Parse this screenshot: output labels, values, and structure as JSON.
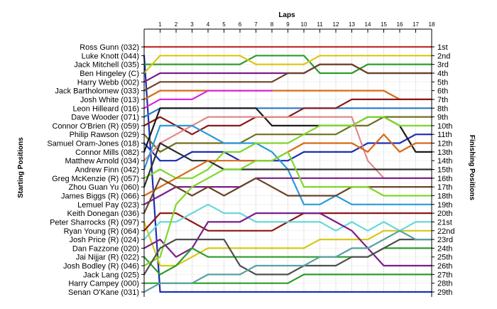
{
  "chart_data": {
    "type": "line",
    "title": "",
    "xlabel": "Laps",
    "ylabel_left": "Starting Positions",
    "ylabel_right": "Finishing Positions",
    "x": [
      0,
      1,
      2,
      3,
      4,
      5,
      6,
      7,
      8,
      9,
      10,
      11,
      12,
      13,
      14,
      15,
      16,
      17,
      18
    ],
    "x_tick_labels": [
      "1",
      "2",
      "3",
      "4",
      "5",
      "6",
      "7",
      "8",
      "9",
      "10",
      "11",
      "12",
      "13",
      "14",
      "15",
      "16",
      "17",
      "18"
    ],
    "ylim": [
      1,
      29
    ],
    "grid": true,
    "drivers": [
      "Ross Gunn (032)",
      "Luke Knott (044)",
      "Jack Mitchell (035)",
      "Ben Hingeley (C)",
      "Harry Webb (002)",
      "Jack Bartholomew (033)",
      "Josh White (013)",
      "Leon Hilleard (016)",
      "Dave Wooder (071)",
      "Connor O'Brien (R) (059)",
      "Philip Rawson (029)",
      "Samuel Oram-Jones (018)",
      "Connor Mills (082)",
      "Matthew Arnold (034)",
      "Andrew Finn (042)",
      "Greg McKenzie (R) (057)",
      "Zhou Guan Yu (060)",
      "James Biggs (R) (066)",
      "Lemuel Pay (023)",
      "Keith Donegan (036)",
      "Peter Sharrocks (R) (097)",
      "Ryan Young (R) (064)",
      "Josh Price (R) (024)",
      "Dan Fazzone (020)",
      "Jai Nijjar (R) (022)",
      "Josh Bodley (R) (046)",
      "Jack Lang (025)",
      "Harry Campey (000)",
      "Senan O'Kane (031)"
    ],
    "finishing_labels": [
      "1st",
      "2nd",
      "3rd",
      "4th",
      "5th",
      "6th",
      "7th",
      "8th",
      "9th",
      "10th",
      "11th",
      "12th",
      "13th",
      "14th",
      "15th",
      "16th",
      "17th",
      "18th",
      "19th",
      "20th",
      "21st",
      "22nd",
      "23rd",
      "24th",
      "25th",
      "26th",
      "27th",
      "28th",
      "29th"
    ],
    "series": [
      {
        "name": "Ross Gunn (032)",
        "color": "#c0302a",
        "values": [
          1,
          1,
          1,
          1,
          1,
          1,
          1,
          1,
          1,
          1,
          1,
          1,
          1,
          1,
          1,
          1,
          1,
          1,
          1
        ]
      },
      {
        "name": "Luke Knott (044)",
        "color": "#1c2fb0",
        "values": [
          2,
          29,
          29,
          29,
          29,
          29,
          29,
          29,
          29,
          29,
          29,
          29,
          29,
          29,
          29,
          29,
          29,
          29,
          29
        ]
      },
      {
        "name": "Jack Mitchell (035)",
        "color": "#2e9c2e",
        "values": [
          3,
          3,
          3,
          3,
          3,
          3,
          3,
          2,
          2,
          2,
          2,
          4,
          4,
          4,
          3,
          3,
          3,
          3,
          3
        ]
      },
      {
        "name": "Ben Hingeley (C)",
        "color": "#d8c818",
        "values": [
          4,
          2,
          2,
          2,
          2,
          2,
          2,
          3,
          3,
          3,
          3,
          2,
          2,
          2,
          2,
          2,
          2,
          2,
          2
        ]
      },
      {
        "name": "Harry Webb (002)",
        "color": "#7a1e8a",
        "values": [
          5,
          4,
          4,
          4,
          4,
          4,
          4,
          4,
          4,
          4,
          4,
          3,
          3,
          3,
          4,
          4,
          4,
          4,
          4
        ]
      },
      {
        "name": "Jack Bartholomew (033)",
        "color": "#6b4428",
        "values": [
          6,
          5,
          5,
          5,
          5,
          5,
          5,
          5,
          5,
          4,
          4,
          3,
          3,
          3,
          4,
          4,
          4,
          4,
          4
        ]
      },
      {
        "name": "Josh White (013)",
        "color": "#d96a18",
        "values": [
          7,
          6,
          6,
          6,
          6,
          6,
          6,
          6,
          6,
          6,
          6,
          6,
          6,
          6,
          6,
          6,
          7,
          7,
          7
        ]
      },
      {
        "name": "Leon Hilleard (016)",
        "color": "#d82ad8",
        "values": [
          8,
          7,
          7,
          7,
          6,
          6,
          6,
          6,
          6,
          null,
          null,
          null,
          null,
          null,
          null,
          null,
          null,
          null,
          null
        ]
      },
      {
        "name": "Dave Wooder (071)",
        "color": "#2a7ac8",
        "values": [
          9,
          8,
          8,
          8,
          8,
          8,
          8,
          8,
          8,
          8,
          8,
          8,
          8,
          8,
          8,
          8,
          8,
          8,
          8
        ]
      },
      {
        "name": "Connor O'Brien (R) (059)",
        "color": "#8a1a1a",
        "values": [
          10,
          9,
          10,
          11,
          10,
          10,
          10,
          9,
          9,
          9,
          8,
          8,
          8,
          7,
          7,
          7,
          7,
          7,
          7
        ]
      },
      {
        "name": "Philip Rawson (029)",
        "color": "#707020",
        "values": [
          11,
          13,
          12,
          12,
          12,
          12,
          12,
          11,
          11,
          11,
          11,
          11,
          11,
          10,
          10,
          9,
          9,
          9,
          9
        ]
      },
      {
        "name": "Samuel Oram-Jones (018)",
        "color": "#1c2fb0",
        "values": [
          12,
          14,
          14,
          13,
          13,
          13,
          14,
          14,
          14,
          14,
          13,
          13,
          13,
          13,
          12,
          12,
          12,
          11,
          11
        ]
      },
      {
        "name": "Connor Mills (082)",
        "color": "#1a1a1a",
        "values": [
          13,
          8,
          8,
          8,
          8,
          8,
          8,
          8,
          10,
          10,
          10,
          10,
          10,
          10,
          9,
          9,
          10,
          13,
          13
        ]
      },
      {
        "name": "Matthew Arnold (034)",
        "color": "#e08a8a",
        "values": [
          14,
          12,
          11,
          10,
          9,
          9,
          9,
          9,
          9,
          9,
          9,
          9,
          9,
          9,
          14,
          16,
          16,
          16,
          16
        ]
      },
      {
        "name": "Andrew Finn (042)",
        "color": "#2a9ad8",
        "values": [
          15,
          10,
          10,
          10,
          11,
          12,
          12,
          12,
          13,
          15,
          19,
          19,
          18,
          19,
          19,
          19,
          19,
          19,
          19
        ]
      },
      {
        "name": "Greg McKenzie (R) (057)",
        "color": "#7fd82a",
        "values": [
          16,
          15,
          16,
          16,
          15,
          13,
          13,
          12,
          12,
          12,
          11,
          10,
          10,
          10,
          9,
          9,
          10,
          10,
          10
        ]
      },
      {
        "name": "Zhou Guan Yu (060)",
        "color": "#303030",
        "values": [
          17,
          12,
          13,
          14,
          14,
          15,
          15,
          15,
          15,
          15,
          15,
          15,
          15,
          15,
          15,
          15,
          15,
          15,
          15
        ]
      },
      {
        "name": "James Biggs (R) (066)",
        "color": "#d96a18",
        "values": [
          18,
          17,
          16,
          15,
          14,
          14,
          14,
          14,
          14,
          13,
          12,
          12,
          12,
          12,
          13,
          11,
          13,
          12,
          12
        ]
      },
      {
        "name": "Lemuel Pay (023)",
        "color": "#7a1e8a",
        "values": [
          19,
          18,
          17,
          17,
          17,
          17,
          17,
          16,
          16,
          16,
          16,
          16,
          16,
          16,
          16,
          16,
          16,
          16,
          16
        ]
      },
      {
        "name": "Keith Donegan (036)",
        "color": "#6b4428",
        "values": [
          20,
          16,
          17,
          18,
          17,
          18,
          17,
          16,
          17,
          18,
          18,
          18,
          18,
          17,
          17,
          17,
          17,
          17,
          17
        ]
      },
      {
        "name": "Peter Sharrocks (R) (097)",
        "color": "#d8c818",
        "values": [
          21,
          26,
          26,
          25,
          24,
          24,
          24,
          24,
          24,
          24,
          24,
          23,
          23,
          23,
          23,
          22,
          22,
          22,
          22
        ]
      },
      {
        "name": "Ryan Young (R) (064)",
        "color": "#8a1a1a",
        "values": [
          22,
          20,
          20,
          21,
          22,
          22,
          22,
          22,
          22,
          21,
          20,
          20,
          20,
          20,
          20,
          20,
          20,
          20,
          20
        ]
      },
      {
        "name": "Josh Price (R) (024)",
        "color": "#6ad8d8",
        "values": [
          23,
          21,
          21,
          20,
          19,
          20,
          20,
          21,
          21,
          21,
          21,
          21,
          22,
          21,
          22,
          21,
          22,
          21,
          21
        ]
      },
      {
        "name": "Dan Fazzone (020)",
        "color": "#7a1e8a",
        "values": [
          24,
          23,
          25,
          24,
          21,
          21,
          21,
          20,
          20,
          20,
          20,
          20,
          21,
          22,
          24,
          26,
          26,
          26,
          26
        ]
      },
      {
        "name": "Jai Nijjar (R) (022)",
        "color": "#2e9c2e",
        "values": [
          25,
          27,
          26,
          24,
          25,
          25,
          25,
          25,
          25,
          25,
          25,
          25,
          25,
          25,
          25,
          24,
          24,
          24,
          24
        ]
      },
      {
        "name": "Josh Bodley (R) (046)",
        "color": "#7fd82a",
        "values": [
          26,
          25,
          19,
          17,
          16,
          15,
          15,
          14,
          14,
          13,
          17,
          17,
          17,
          17,
          17,
          18,
          18,
          18,
          18
        ]
      },
      {
        "name": "Jack Lang (025)",
        "color": "#505050",
        "values": [
          27,
          24,
          23,
          23,
          23,
          23,
          26,
          27,
          27,
          27,
          26,
          26,
          26,
          25,
          25,
          24,
          23,
          23,
          23
        ]
      },
      {
        "name": "Harry Campey (000)",
        "color": "#2e9c2e",
        "values": [
          28,
          28,
          28,
          28,
          28,
          28,
          28,
          28,
          28,
          28,
          27,
          27,
          27,
          27,
          27,
          27,
          27,
          27,
          27
        ]
      },
      {
        "name": "Senan O'Kane (031)",
        "color": "#5aa0a0",
        "values": [
          29,
          28,
          28,
          28,
          27,
          27,
          27,
          26,
          26,
          26,
          26,
          25,
          25,
          24,
          24,
          23,
          22,
          23,
          23
        ]
      }
    ]
  }
}
